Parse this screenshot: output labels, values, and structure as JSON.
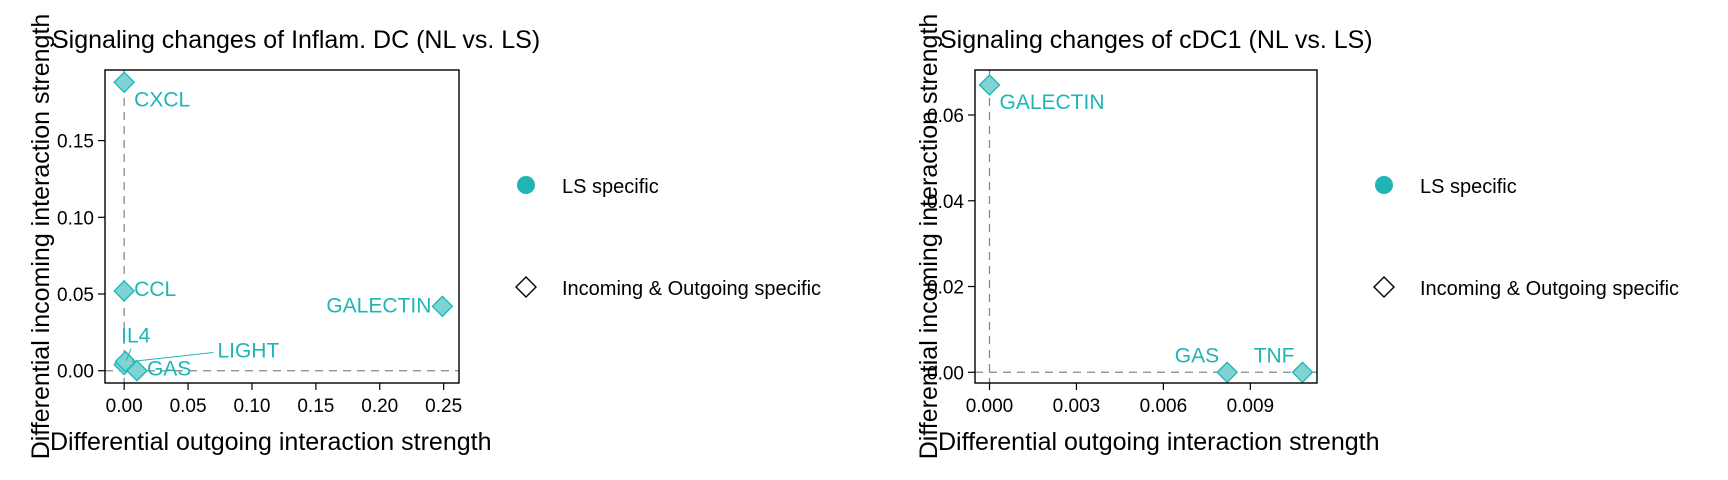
{
  "colors": {
    "accent": "#1fb5b5",
    "marker_fill": "#7fd3d3",
    "axis": "#000000",
    "guide": "#888888"
  },
  "legend": {
    "items": [
      {
        "label": "LS specific",
        "shape": "filled-circle"
      },
      {
        "label": "Incoming & Outgoing specific",
        "shape": "open-diamond"
      }
    ]
  },
  "chart_data": [
    {
      "type": "scatter",
      "title": "Signaling changes of Inflam. DC (NL vs. LS)",
      "xlabel": "Differential outgoing interaction strength",
      "ylabel": "Differential incoming interaction strength",
      "xlim": [
        -0.015,
        0.262
      ],
      "ylim": [
        -0.008,
        0.196
      ],
      "xticks": [
        0.0,
        0.05,
        0.1,
        0.15,
        0.2,
        0.25
      ],
      "xtick_labels": [
        "0.00",
        "0.05",
        "0.10",
        "0.15",
        "0.20",
        "0.25"
      ],
      "yticks": [
        0.0,
        0.05,
        0.1,
        0.15
      ],
      "ytick_labels": [
        "0.00",
        "0.05",
        "0.10",
        "0.15"
      ],
      "guides": {
        "x": 0,
        "y": 0
      },
      "points": [
        {
          "label": "CXCL",
          "x": 0.0,
          "y": 0.188,
          "label_pos": "below-right"
        },
        {
          "label": "CCL",
          "x": 0.0,
          "y": 0.052,
          "label_pos": "right"
        },
        {
          "label": "GALECTIN",
          "x": 0.249,
          "y": 0.042,
          "label_pos": "left"
        },
        {
          "label": "IL4",
          "x": 0.0,
          "y": 0.004,
          "label_pos": "above-right"
        },
        {
          "label": "GAS",
          "x": 0.01,
          "y": 0.0,
          "label_pos": "right"
        },
        {
          "label": "LIGHT",
          "x": 0.001,
          "y": 0.006,
          "label_pos": "far-right"
        }
      ]
    },
    {
      "type": "scatter",
      "title": "Signaling changes of cDC1 (NL vs. LS)",
      "xlabel": "Differential outgoing interaction strength",
      "ylabel": "Differential incoming interaction strength",
      "xlim": [
        -0.0005,
        0.0113
      ],
      "ylim": [
        -0.0025,
        0.0705
      ],
      "xticks": [
        0.0,
        0.003,
        0.006,
        0.009
      ],
      "xtick_labels": [
        "0.000",
        "0.003",
        "0.006",
        "0.009"
      ],
      "yticks": [
        0.0,
        0.02,
        0.04,
        0.06
      ],
      "ytick_labels": [
        "0.00",
        "0.02",
        "0.04",
        "0.06"
      ],
      "guides": {
        "x": 0,
        "y": 0
      },
      "points": [
        {
          "label": "GALECTIN",
          "x": 0.0,
          "y": 0.067,
          "label_pos": "below-right"
        },
        {
          "label": "GAS",
          "x": 0.0082,
          "y": 0.0,
          "label_pos": "above-left"
        },
        {
          "label": "TNF",
          "x": 0.0108,
          "y": 0.0,
          "label_pos": "above-left"
        }
      ]
    }
  ]
}
